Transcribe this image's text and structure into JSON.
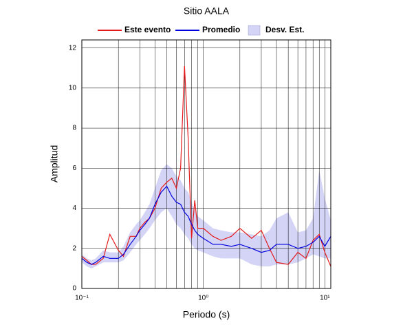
{
  "chart_data": {
    "type": "line",
    "title": "Sitio AALA",
    "xlabel": "Periodo (s)",
    "ylabel": "Amplitud",
    "x": [
      0.1,
      0.11,
      0.12,
      0.13,
      0.15,
      0.17,
      0.2,
      0.22,
      0.25,
      0.28,
      0.3,
      0.33,
      0.36,
      0.4,
      0.45,
      0.5,
      0.55,
      0.6,
      0.65,
      0.7,
      0.75,
      0.8,
      0.85,
      0.9,
      1.0,
      1.2,
      1.4,
      1.7,
      2.0,
      2.5,
      3.0,
      3.5,
      4.0,
      5.0,
      6.0,
      7.0,
      8.0,
      9.0,
      10.0,
      11.2
    ],
    "series": [
      {
        "name": "Este evento",
        "color": "#e41a1c",
        "values": [
          1.6,
          1.4,
          1.2,
          1.2,
          1.5,
          2.7,
          1.9,
          1.6,
          2.6,
          2.6,
          3.0,
          3.3,
          3.5,
          4.0,
          5.0,
          5.3,
          5.5,
          5.0,
          6.0,
          11.1,
          7.5,
          2.5,
          4.4,
          3.0,
          3.0,
          2.6,
          2.4,
          2.6,
          3.0,
          2.5,
          2.9,
          2.0,
          1.3,
          1.2,
          1.8,
          1.5,
          2.4,
          2.7,
          1.8,
          1.1
        ]
      },
      {
        "name": "Promedio",
        "color": "#0000dd",
        "values": [
          1.5,
          1.3,
          1.2,
          1.3,
          1.6,
          1.5,
          1.5,
          1.7,
          2.2,
          2.6,
          2.9,
          3.2,
          3.5,
          4.2,
          4.8,
          5.1,
          4.6,
          4.3,
          4.2,
          3.8,
          3.6,
          3.2,
          2.9,
          2.7,
          2.5,
          2.2,
          2.2,
          2.1,
          2.2,
          2.0,
          1.8,
          1.9,
          2.2,
          2.2,
          2.0,
          2.1,
          2.3,
          2.6,
          2.1,
          2.6
        ]
      },
      {
        "name": "Desv. Est.",
        "color": "#d4d4f7",
        "lower": [
          1.3,
          1.1,
          1.0,
          1.1,
          1.3,
          1.3,
          1.3,
          1.4,
          1.8,
          2.2,
          2.4,
          2.7,
          3.0,
          3.4,
          3.8,
          4.0,
          3.6,
          3.2,
          3.0,
          2.7,
          2.5,
          2.2,
          2.0,
          1.9,
          1.8,
          1.6,
          1.5,
          1.5,
          1.5,
          1.2,
          1.1,
          1.1,
          1.2,
          1.2,
          1.3,
          1.5,
          1.7,
          1.6,
          1.5,
          1.5
        ],
        "upper": [
          1.7,
          1.5,
          1.4,
          1.5,
          1.9,
          1.8,
          1.8,
          2.1,
          2.8,
          3.2,
          3.4,
          3.8,
          4.2,
          5.0,
          5.9,
          6.2,
          6.0,
          5.6,
          5.4,
          5.0,
          4.8,
          4.3,
          3.9,
          3.6,
          3.4,
          3.0,
          2.9,
          2.8,
          2.8,
          2.7,
          2.6,
          2.9,
          3.5,
          3.8,
          2.8,
          2.9,
          3.5,
          5.9,
          4.5,
          3.4
        ]
      }
    ],
    "xscale": "log",
    "xlim": [
      0.1,
      11.2
    ],
    "xticks": [
      {
        "value": 0.1,
        "label": "10⁻¹"
      },
      {
        "value": 1,
        "label": "10⁰"
      },
      {
        "value": 10,
        "label": "10¹"
      }
    ],
    "xminorticks": [
      0.2,
      0.3,
      0.4,
      0.5,
      0.6,
      0.7,
      0.8,
      0.9,
      2,
      3,
      4,
      5,
      6,
      7,
      8,
      9
    ],
    "ylim": [
      0,
      12.4
    ],
    "yticks": [
      0,
      2,
      4,
      6,
      8,
      10,
      12
    ],
    "grid": true,
    "legend": "top"
  }
}
